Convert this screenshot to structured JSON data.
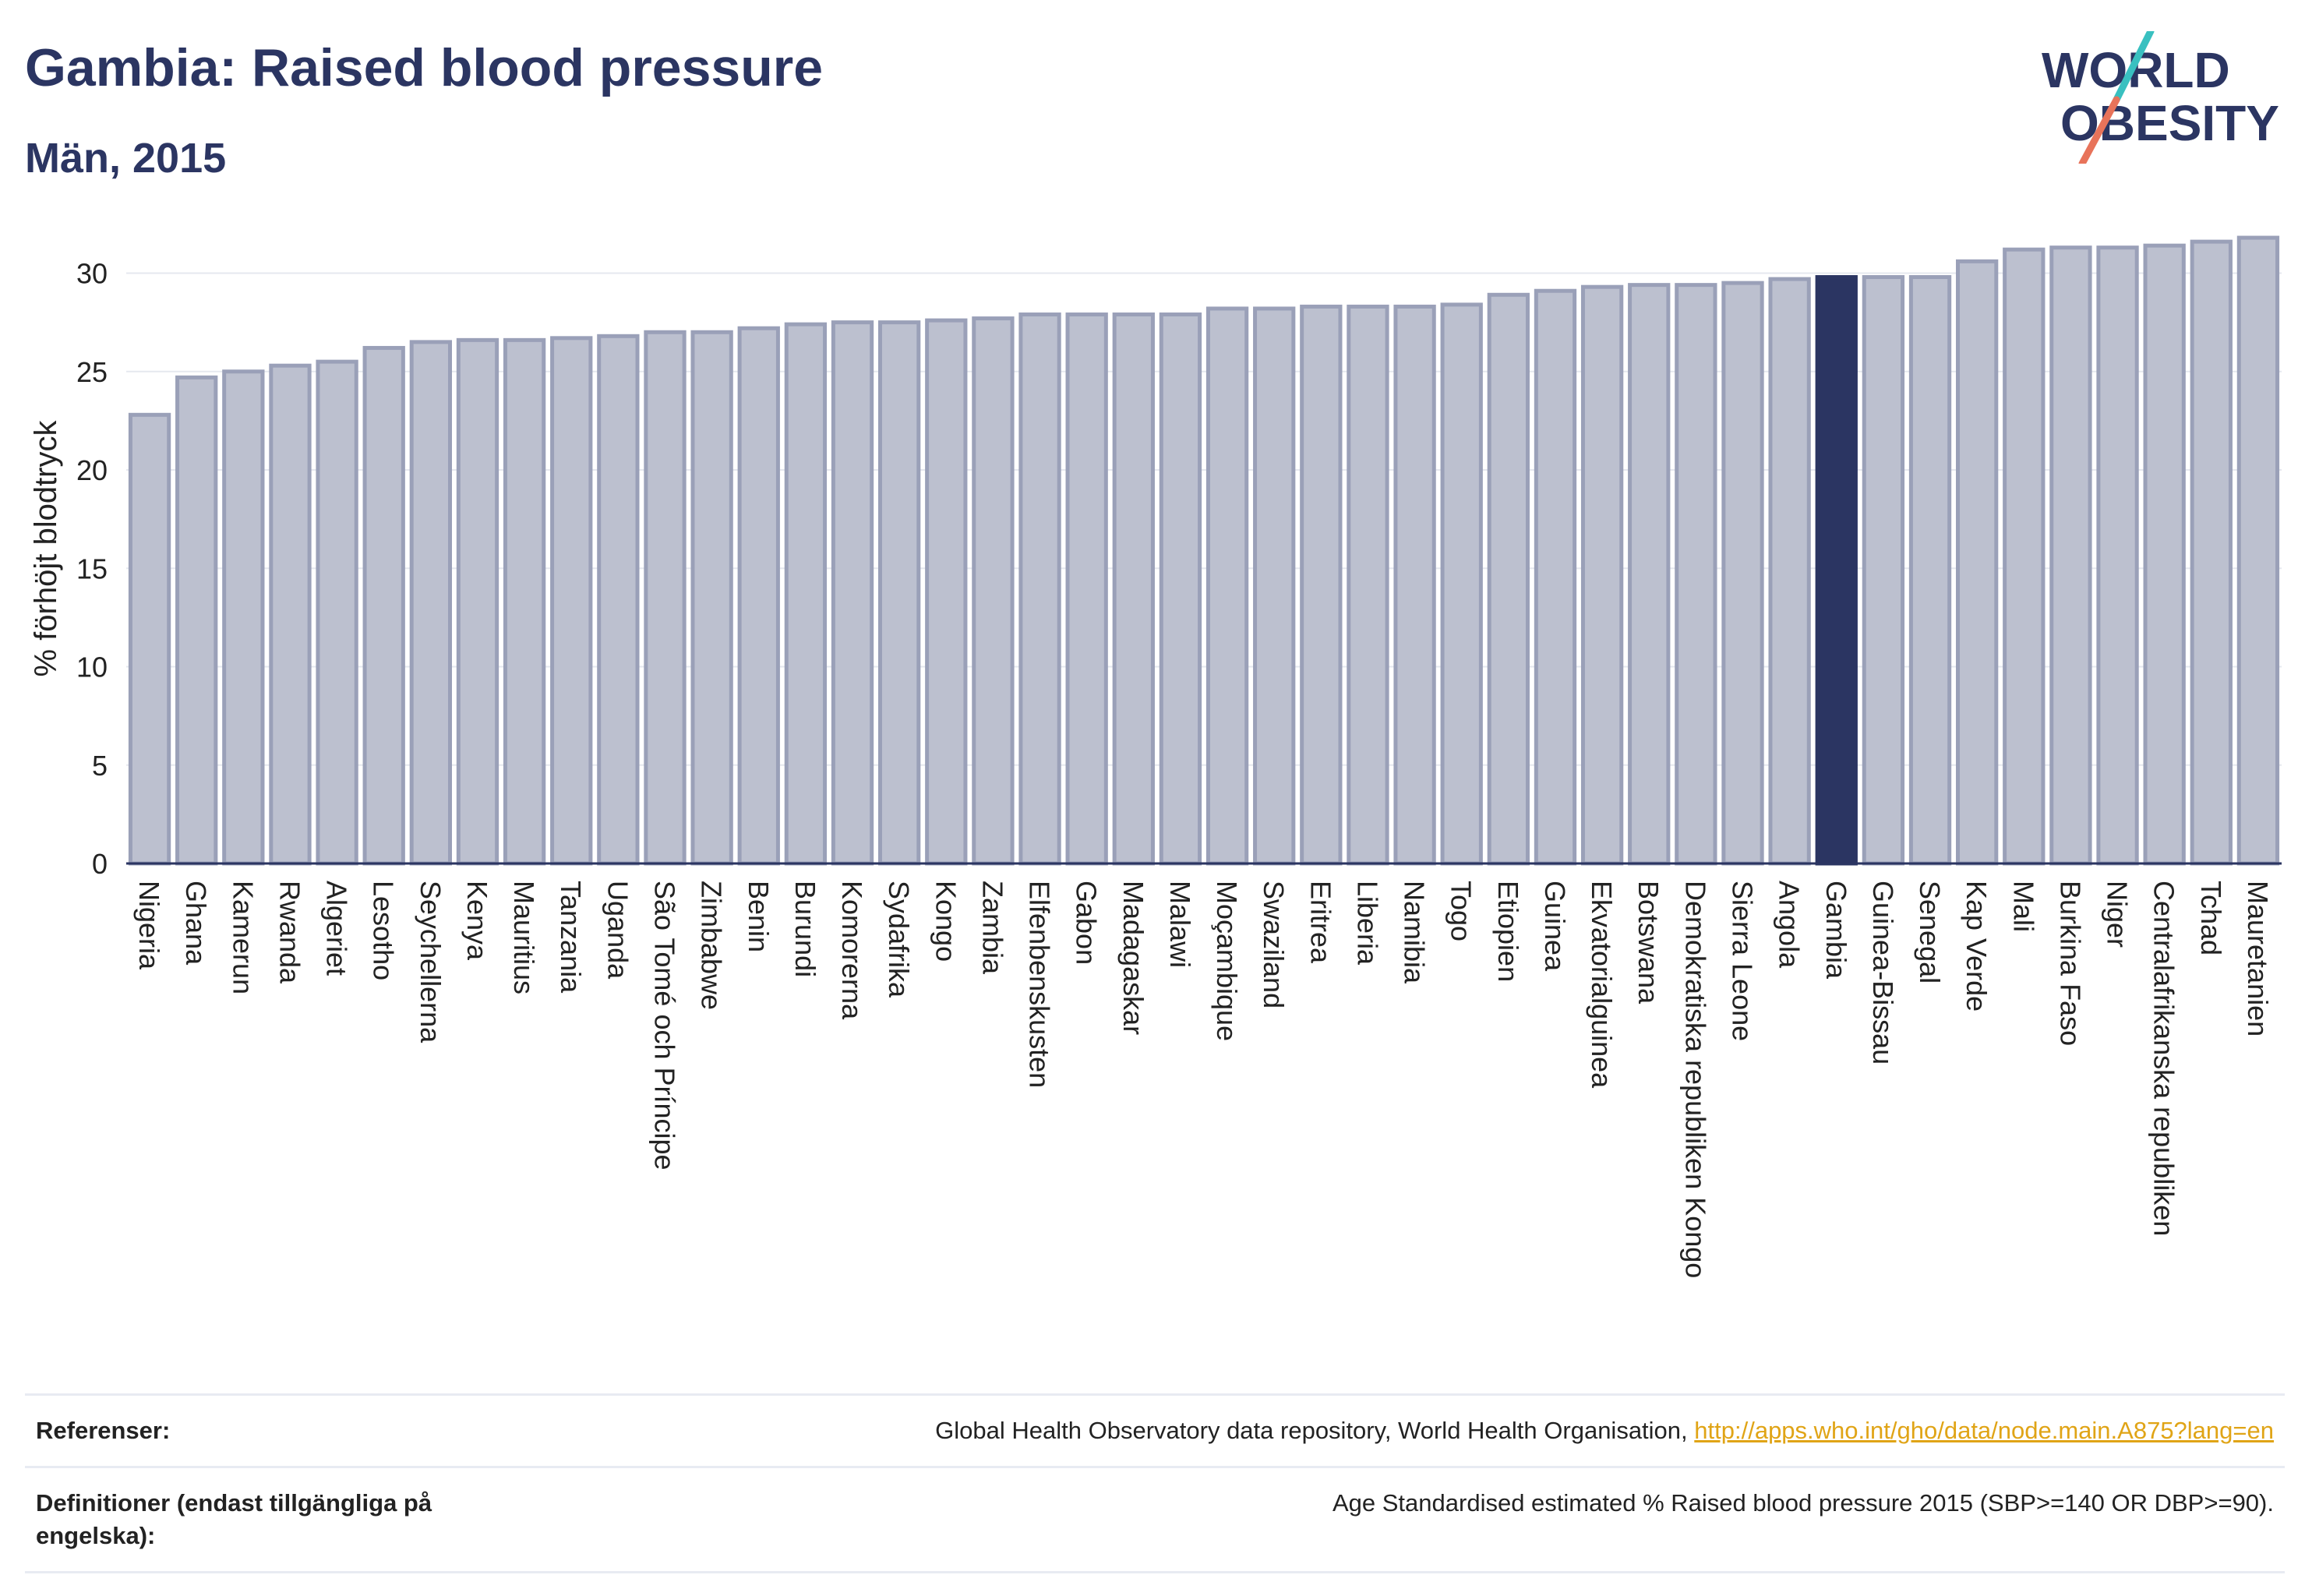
{
  "header": {
    "title": "Gambia: Raised blood pressure",
    "subtitle": "Män, 2015"
  },
  "logo": {
    "line1": "WORLD",
    "line2": "OBESITY"
  },
  "colors": {
    "bar_default_fill": "#bcc0cf",
    "bar_default_stroke": "#9aa0b8",
    "bar_highlight": "#2b3562",
    "title": "#2b3562",
    "logo_slash_teal": "#39c0c0",
    "logo_slash_coral": "#e8735a",
    "link": "#e0a416"
  },
  "chart_data": {
    "type": "bar",
    "title": "Gambia: Raised blood pressure",
    "subtitle": "Män, 2015",
    "xlabel": "",
    "ylabel": "% förhöjt blodtryck",
    "ylim": [
      0,
      32
    ],
    "yticks": [
      0,
      5,
      10,
      15,
      20,
      25,
      30
    ],
    "grid": true,
    "highlight": "Gambia",
    "categories": [
      "Nigeria",
      "Ghana",
      "Kamerun",
      "Rwanda",
      "Algeriet",
      "Lesotho",
      "Seychellerna",
      "Kenya",
      "Mauritius",
      "Tanzania",
      "Uganda",
      "São Tomé och Príncipe",
      "Zimbabwe",
      "Benin",
      "Burundi",
      "Komorerna",
      "Sydafrika",
      "Kongo",
      "Zambia",
      "Elfenbenskusten",
      "Gabon",
      "Madagaskar",
      "Malawi",
      "Moçambique",
      "Swaziland",
      "Eritrea",
      "Liberia",
      "Namibia",
      "Togo",
      "Etiopien",
      "Guinea",
      "Ekvatorialguinea",
      "Botswana",
      "Demokratiska republiken Kongo",
      "Sierra Leone",
      "Angola",
      "Gambia",
      "Guinea-Bissau",
      "Senegal",
      "Kap Verde",
      "Mali",
      "Burkina Faso",
      "Niger",
      "Centralafrikanska republiken",
      "Tchad",
      "Mauretanien"
    ],
    "values": [
      22.8,
      24.7,
      25.0,
      25.3,
      25.5,
      26.2,
      26.5,
      26.6,
      26.6,
      26.7,
      26.8,
      27.0,
      27.0,
      27.2,
      27.4,
      27.5,
      27.5,
      27.6,
      27.7,
      27.9,
      27.9,
      27.9,
      27.9,
      28.2,
      28.2,
      28.3,
      28.3,
      28.3,
      28.4,
      28.9,
      29.1,
      29.3,
      29.4,
      29.4,
      29.5,
      29.7,
      29.8,
      29.8,
      29.8,
      30.6,
      31.2,
      31.3,
      31.3,
      31.4,
      31.6,
      31.8
    ]
  },
  "footer": {
    "references_label": "Referenser:",
    "references_text": "Global Health Observatory data repository, World Health Organisation,",
    "references_link": "http://apps.who.int/gho/data/node.main.A875?lang=en",
    "definitions_label": "Definitioner (endast tillgängliga på engelska):",
    "definitions_text": "Age Standardised estimated % Raised blood pressure 2015 (SBP>=140 OR DBP>=90)."
  }
}
